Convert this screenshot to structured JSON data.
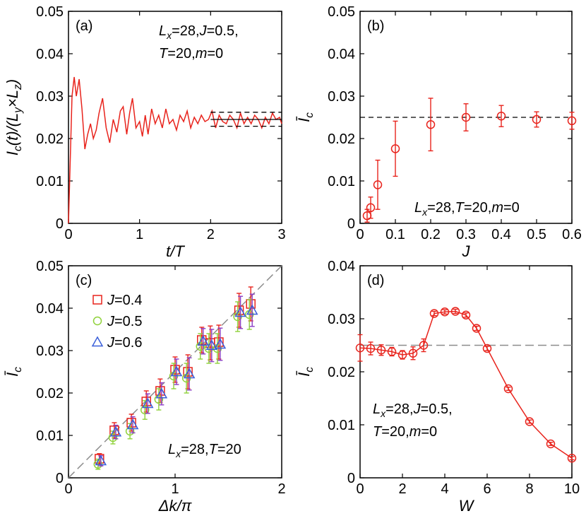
{
  "colors": {
    "red": "#e8231c",
    "green": "#8fd13a",
    "blue": "#3a5fd9",
    "purple": "#8a3cc4",
    "gray_dash": "#8c8c8c",
    "black": "#000000"
  },
  "chart_data": [
    {
      "id": "a",
      "type": "line",
      "panel_label": "(a)",
      "annotation_lines": [
        "Lx=28,J=0.5,",
        "T=20,m=0"
      ],
      "xlabel": "t/T",
      "ylabel": "Ic(t)/(Ly×Lz)",
      "xlim": [
        0,
        3
      ],
      "ylim": [
        0,
        0.05
      ],
      "xticks": [
        "0",
        "1",
        "2",
        "3"
      ],
      "yticks": [
        "0",
        "0.01",
        "0.02",
        "0.03",
        "0.04",
        "0.05"
      ],
      "series": [
        {
          "x": [
            0,
            0.02,
            0.05,
            0.08,
            0.11,
            0.15,
            0.19,
            0.23,
            0.27,
            0.31,
            0.35,
            0.39,
            0.43,
            0.48,
            0.53,
            0.58,
            0.63,
            0.68,
            0.73,
            0.77,
            0.82,
            0.86,
            0.9,
            0.95,
            1.0,
            1.04,
            1.08,
            1.12,
            1.17,
            1.22,
            1.27,
            1.32,
            1.37,
            1.42,
            1.47,
            1.52,
            1.57,
            1.62,
            1.67,
            1.72,
            1.77,
            1.82,
            1.87,
            1.92,
            1.97,
            2.02,
            2.07,
            2.12,
            2.17,
            2.22,
            2.27,
            2.32,
            2.37,
            2.42,
            2.47,
            2.52,
            2.57,
            2.62,
            2.67,
            2.72,
            2.77,
            2.82,
            2.87,
            2.92,
            2.97,
            3.0
          ],
          "y": [
            0,
            0.012,
            0.03,
            0.0345,
            0.03,
            0.034,
            0.027,
            0.0175,
            0.021,
            0.0235,
            0.02,
            0.022,
            0.026,
            0.0295,
            0.0225,
            0.019,
            0.0245,
            0.0215,
            0.0265,
            0.0275,
            0.021,
            0.026,
            0.0295,
            0.0225,
            0.024,
            0.0205,
            0.0255,
            0.021,
            0.027,
            0.0235,
            0.0255,
            0.0225,
            0.027,
            0.0235,
            0.0245,
            0.022,
            0.0255,
            0.024,
            0.0265,
            0.0225,
            0.025,
            0.0235,
            0.0255,
            0.024,
            0.0245,
            0.0265,
            0.0225,
            0.0255,
            0.024,
            0.0235,
            0.0255,
            0.0245,
            0.0225,
            0.026,
            0.0235,
            0.025,
            0.0235,
            0.0255,
            0.0245,
            0.0225,
            0.025,
            0.0235,
            0.026,
            0.0245,
            0.025,
            0.0235
          ]
        }
      ],
      "hlines": [
        0.0262,
        0.0229,
        0.0245
      ],
      "hline_range": [
        2,
        3
      ]
    },
    {
      "id": "b",
      "type": "scatter",
      "panel_label": "(b)",
      "annotation_lines": [
        "Lx=28,T=20,m=0"
      ],
      "xlabel": "J",
      "ylabel": "Īc",
      "xlim": [
        0,
        0.6
      ],
      "ylim": [
        0,
        0.05
      ],
      "xticks": [
        "0",
        "0.1",
        "0.2",
        "0.3",
        "0.4",
        "0.5",
        "0.6"
      ],
      "yticks": [
        "0",
        "0.01",
        "0.02",
        "0.03",
        "0.04",
        "0.05"
      ],
      "series": [
        {
          "x": [
            0.02,
            0.03,
            0.05,
            0.1,
            0.2,
            0.3,
            0.4,
            0.5,
            0.6
          ],
          "y": [
            0.0018,
            0.0037,
            0.0091,
            0.0176,
            0.0233,
            0.025,
            0.0253,
            0.0245,
            0.0242
          ],
          "err": [
            0.0015,
            0.0025,
            0.0058,
            0.0065,
            0.0062,
            0.0032,
            0.0025,
            0.0018,
            0.002
          ]
        }
      ],
      "hline": 0.025
    },
    {
      "id": "c",
      "type": "scatter",
      "panel_label": "(c)",
      "annotation_lines": [
        "Lx=28,T=20"
      ],
      "xlabel": "Δk/π",
      "ylabel": "Īc",
      "xlim": [
        0,
        2
      ],
      "ylim": [
        0,
        0.05
      ],
      "xticks": [
        "0",
        "1",
        "2"
      ],
      "yticks": [
        "0",
        "0.01",
        "0.02",
        "0.03",
        "0.04",
        "0.05"
      ],
      "x": [
        0.29,
        0.43,
        0.59,
        0.73,
        0.86,
        1.0,
        1.12,
        1.25,
        1.33,
        1.41,
        1.6,
        1.71
      ],
      "series": [
        {
          "name": "J=0.4",
          "marker": "square",
          "y": [
            0.0045,
            0.0112,
            0.013,
            0.018,
            0.0205,
            0.0255,
            0.025,
            0.0325,
            0.0318,
            0.032,
            0.0395,
            0.041
          ],
          "err": [
            0.0012,
            0.0018,
            0.002,
            0.0025,
            0.0028,
            0.003,
            0.004,
            0.003,
            0.004,
            0.004,
            0.004,
            0.004
          ]
        },
        {
          "name": "J=0.5",
          "marker": "circle",
          "y": [
            0.0032,
            0.0095,
            0.011,
            0.016,
            0.0185,
            0.024,
            0.0235,
            0.031,
            0.0305,
            0.0305,
            0.038,
            0.0385
          ],
          "err": [
            0.0012,
            0.0015,
            0.0018,
            0.0022,
            0.0025,
            0.003,
            0.0035,
            0.003,
            0.0035,
            0.0035,
            0.0035,
            0.0035
          ]
        },
        {
          "name": "J=0.6",
          "marker": "triangle",
          "y": [
            0.004,
            0.0108,
            0.0125,
            0.0175,
            0.0198,
            0.025,
            0.0245,
            0.0322,
            0.0312,
            0.0315,
            0.039,
            0.0395
          ],
          "err": [
            0.0012,
            0.0016,
            0.0019,
            0.0023,
            0.0026,
            0.003,
            0.0038,
            0.003,
            0.0038,
            0.0038,
            0.0038,
            0.0038
          ]
        }
      ],
      "diagonal": [
        [
          0,
          0
        ],
        [
          2,
          0.05
        ]
      ]
    },
    {
      "id": "d",
      "type": "line",
      "panel_label": "(d)",
      "annotation_lines": [
        "Lx=28,J=0.5,",
        "T=20,m=0"
      ],
      "xlabel": "W",
      "ylabel": "Īc",
      "xlim": [
        0,
        10
      ],
      "ylim": [
        0,
        0.04
      ],
      "xticks": [
        "0",
        "2",
        "4",
        "6",
        "8",
        "10"
      ],
      "yticks": [
        "0",
        "0.01",
        "0.02",
        "0.03",
        "0.04"
      ],
      "series": [
        {
          "x": [
            0,
            0.5,
            1,
            1.5,
            2,
            2.5,
            3,
            3.5,
            4,
            4.5,
            5,
            5.5,
            6,
            7,
            8,
            9,
            10
          ],
          "y": [
            0.0245,
            0.0244,
            0.0241,
            0.0238,
            0.0232,
            0.0235,
            0.025,
            0.031,
            0.0313,
            0.0314,
            0.0307,
            0.0282,
            0.0244,
            0.0168,
            0.0106,
            0.0064,
            0.0037
          ],
          "err": [
            0.0025,
            0.0012,
            0.001,
            0.0008,
            0.0008,
            0.0012,
            0.0012,
            0.0004,
            0.0004,
            0.0004,
            0.0004,
            0.0004,
            0.0004,
            0.0003,
            0.0003,
            0.0003,
            0.0003
          ]
        }
      ],
      "hline": 0.025
    }
  ]
}
